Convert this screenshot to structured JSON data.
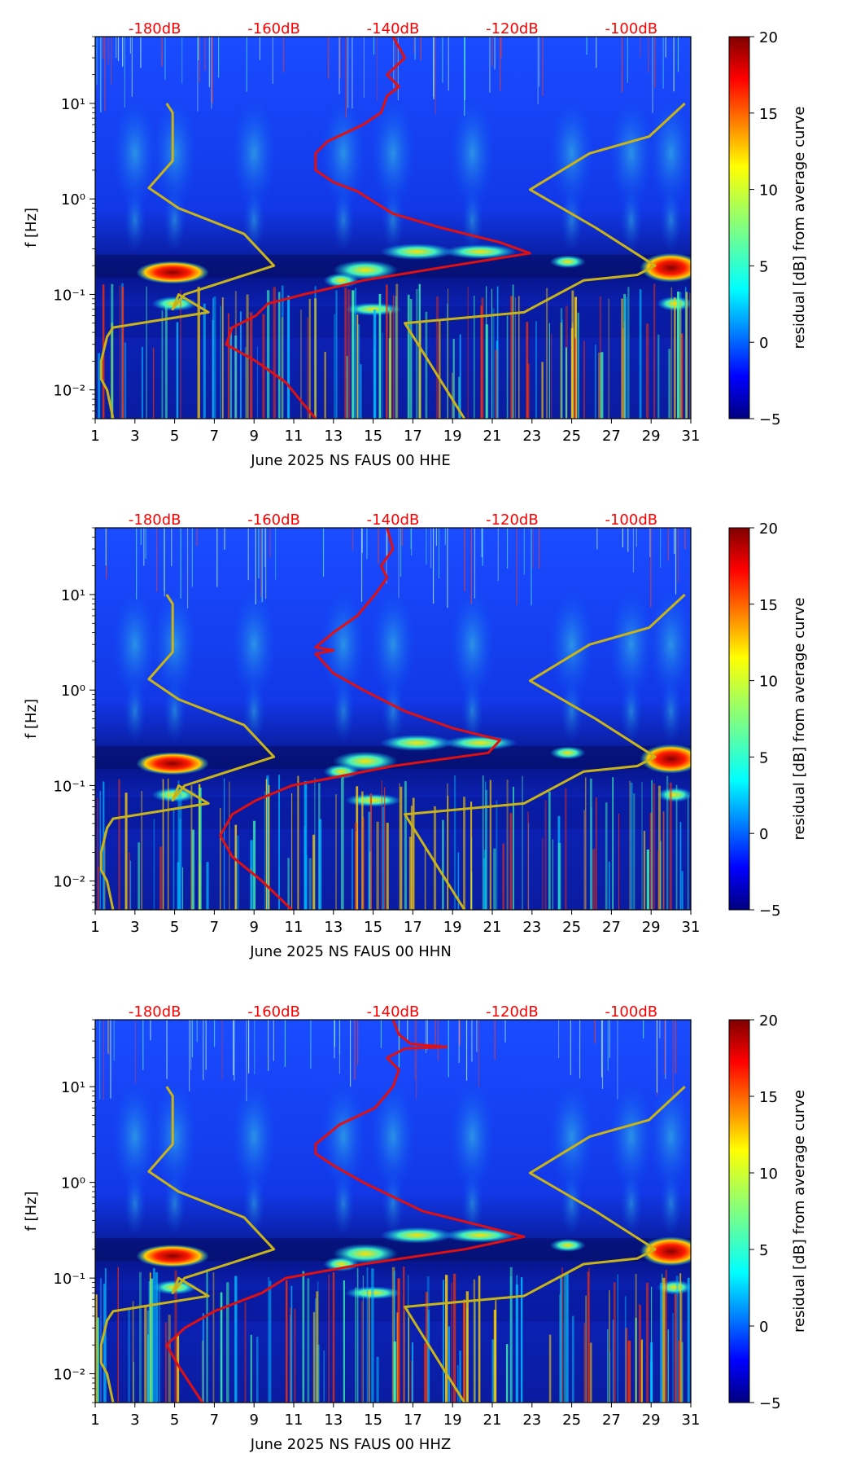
{
  "colors": {
    "model_curve": "#c8b418",
    "average_curve": "#e01010",
    "top_axis_text": "#ff0000",
    "colormap": [
      "#00007f",
      "#0000ff",
      "#0080ff",
      "#00ffff",
      "#80ff80",
      "#ffff00",
      "#ff8000",
      "#ff0000",
      "#7f0000"
    ]
  },
  "chart_data": [
    {
      "type": "heatmap",
      "xlabel": "June 2025 NS FAUS 00 HHE",
      "ylabel": "f [Hz]",
      "x_range": [
        1,
        31
      ],
      "x_ticks": [
        "1",
        "3",
        "5",
        "7",
        "9",
        "11",
        "13",
        "15",
        "17",
        "19",
        "21",
        "23",
        "25",
        "27",
        "29",
        "31"
      ],
      "y_range_hz": [
        0.005,
        50
      ],
      "y_ticks": [
        {
          "label": "10⁻²",
          "value": 0.01
        },
        {
          "label": "10⁻¹",
          "value": 0.1
        },
        {
          "label": "10⁰",
          "value": 1
        },
        {
          "label": "10¹",
          "value": 10
        }
      ],
      "top_axis_ticks": [
        "-180dB",
        "-160dB",
        "-140dB",
        "-120dB",
        "-100dB"
      ],
      "top_axis_range_db": [
        -190,
        -90
      ],
      "colorbar": {
        "label": "residual [dB] from average curve",
        "min": -5,
        "max": 20,
        "ticks": [
          "−5",
          "0",
          "5",
          "10",
          "15",
          "20"
        ]
      },
      "series": [
        {
          "name": "model (NLNM/NHNM)",
          "color": "#c8b418",
          "segments": [
            [
              [
                -178,
                10
              ],
              [
                -177,
                8
              ],
              [
                -177,
                2.5
              ],
              [
                -181,
                1.3
              ],
              [
                -176,
                0.8
              ],
              [
                -165,
                0.43
              ],
              [
                -160,
                0.2
              ],
              [
                -175,
                0.1
              ],
              [
                -177,
                0.07
              ],
              [
                -176,
                0.1
              ],
              [
                -171,
                0.065
              ],
              [
                -187,
                0.045
              ],
              [
                -188,
                0.036
              ],
              [
                -189,
                0.02
              ],
              [
                -189,
                0.013
              ],
              [
                -188,
                0.01
              ],
              [
                -187,
                0.005
              ]
            ],
            [
              [
                -91,
                10
              ],
              [
                -97,
                4.5
              ],
              [
                -107,
                3
              ],
              [
                -117,
                1.25
              ],
              [
                -106,
                0.5
              ],
              [
                -96,
                0.2
              ],
              [
                -99,
                0.16
              ],
              [
                -108,
                0.14
              ],
              [
                -118,
                0.065
              ],
              [
                -138,
                0.05
              ],
              [
                -128,
                0.005
              ]
            ]
          ]
        },
        {
          "name": "average curve",
          "color": "#e01010",
          "points": [
            [
              -140,
              50
            ],
            [
              -138,
              30
            ],
            [
              -141,
              20
            ],
            [
              -139,
              15
            ],
            [
              -141,
              12
            ],
            [
              -142,
              8
            ],
            [
              -145,
              6
            ],
            [
              -151,
              4
            ],
            [
              -153,
              3
            ],
            [
              -153,
              2
            ],
            [
              -150,
              1.5
            ],
            [
              -146,
              1.2
            ],
            [
              -140,
              0.7
            ],
            [
              -132,
              0.5
            ],
            [
              -122,
              0.35
            ],
            [
              -117,
              0.27
            ],
            [
              -130,
              0.2
            ],
            [
              -145,
              0.14
            ],
            [
              -155,
              0.1
            ],
            [
              -161,
              0.08
            ],
            [
              -163,
              0.06
            ],
            [
              -167,
              0.045
            ],
            [
              -168,
              0.03
            ],
            [
              -163,
              0.02
            ],
            [
              -158,
              0.012
            ],
            [
              -153,
              0.005
            ]
          ]
        }
      ]
    },
    {
      "type": "heatmap",
      "xlabel": "June 2025 NS FAUS 00 HHN",
      "ylabel": "f [Hz]",
      "x_range": [
        1,
        31
      ],
      "x_ticks": [
        "1",
        "3",
        "5",
        "7",
        "9",
        "11",
        "13",
        "15",
        "17",
        "19",
        "21",
        "23",
        "25",
        "27",
        "29",
        "31"
      ],
      "y_range_hz": [
        0.005,
        50
      ],
      "y_ticks": [
        {
          "label": "10⁻²",
          "value": 0.01
        },
        {
          "label": "10⁻¹",
          "value": 0.1
        },
        {
          "label": "10⁰",
          "value": 1
        },
        {
          "label": "10¹",
          "value": 10
        }
      ],
      "top_axis_ticks": [
        "-180dB",
        "-160dB",
        "-140dB",
        "-120dB",
        "-100dB"
      ],
      "top_axis_range_db": [
        -190,
        -90
      ],
      "colorbar": {
        "label": "residual [dB] from average curve",
        "min": -5,
        "max": 20,
        "ticks": [
          "−5",
          "0",
          "5",
          "10",
          "15",
          "20"
        ]
      },
      "series": [
        {
          "name": "model (NLNM/NHNM)",
          "color": "#c8b418",
          "segments": [
            [
              [
                -178,
                10
              ],
              [
                -177,
                8
              ],
              [
                -177,
                2.5
              ],
              [
                -181,
                1.3
              ],
              [
                -176,
                0.8
              ],
              [
                -165,
                0.43
              ],
              [
                -160,
                0.2
              ],
              [
                -175,
                0.1
              ],
              [
                -177,
                0.07
              ],
              [
                -176,
                0.1
              ],
              [
                -171,
                0.065
              ],
              [
                -187,
                0.045
              ],
              [
                -188,
                0.036
              ],
              [
                -189,
                0.02
              ],
              [
                -189,
                0.013
              ],
              [
                -188,
                0.01
              ],
              [
                -187,
                0.005
              ]
            ],
            [
              [
                -91,
                10
              ],
              [
                -97,
                4.5
              ],
              [
                -107,
                3
              ],
              [
                -117,
                1.25
              ],
              [
                -106,
                0.5
              ],
              [
                -96,
                0.2
              ],
              [
                -99,
                0.16
              ],
              [
                -108,
                0.14
              ],
              [
                -118,
                0.065
              ],
              [
                -138,
                0.05
              ],
              [
                -128,
                0.005
              ]
            ]
          ]
        },
        {
          "name": "average curve",
          "color": "#e01010",
          "points": [
            [
              -141,
              50
            ],
            [
              -140,
              30
            ],
            [
              -142,
              20
            ],
            [
              -141,
              15
            ],
            [
              -143,
              10
            ],
            [
              -146,
              6
            ],
            [
              -150,
              4
            ],
            [
              -153,
              2.8
            ],
            [
              -150,
              2.6
            ],
            [
              -153,
              2.4
            ],
            [
              -150,
              1.5
            ],
            [
              -145,
              1.0
            ],
            [
              -138,
              0.6
            ],
            [
              -130,
              0.4
            ],
            [
              -122,
              0.3
            ],
            [
              -124,
              0.22
            ],
            [
              -140,
              0.16
            ],
            [
              -157,
              0.1
            ],
            [
              -163,
              0.07
            ],
            [
              -167,
              0.05
            ],
            [
              -169,
              0.03
            ],
            [
              -167,
              0.018
            ],
            [
              -162,
              0.01
            ],
            [
              -157,
              0.005
            ]
          ]
        }
      ]
    },
    {
      "type": "heatmap",
      "xlabel": "June 2025 NS FAUS 00 HHZ",
      "ylabel": "f [Hz]",
      "x_range": [
        1,
        31
      ],
      "x_ticks": [
        "1",
        "3",
        "5",
        "7",
        "9",
        "11",
        "13",
        "15",
        "17",
        "19",
        "21",
        "23",
        "25",
        "27",
        "29",
        "31"
      ],
      "y_range_hz": [
        0.005,
        50
      ],
      "y_ticks": [
        {
          "label": "10⁻²",
          "value": 0.01
        },
        {
          "label": "10⁻¹",
          "value": 0.1
        },
        {
          "label": "10⁰",
          "value": 1
        },
        {
          "label": "10¹",
          "value": 10
        }
      ],
      "top_axis_ticks": [
        "-180dB",
        "-160dB",
        "-140dB",
        "-120dB",
        "-100dB"
      ],
      "top_axis_range_db": [
        -190,
        -90
      ],
      "colorbar": {
        "label": "residual [dB] from average curve",
        "min": -5,
        "max": 20,
        "ticks": [
          "−5",
          "0",
          "5",
          "10",
          "15",
          "20"
        ]
      },
      "series": [
        {
          "name": "model (NLNM/NHNM)",
          "color": "#c8b418",
          "segments": [
            [
              [
                -178,
                10
              ],
              [
                -177,
                8
              ],
              [
                -177,
                2.5
              ],
              [
                -181,
                1.3
              ],
              [
                -176,
                0.8
              ],
              [
                -165,
                0.43
              ],
              [
                -160,
                0.2
              ],
              [
                -175,
                0.1
              ],
              [
                -177,
                0.07
              ],
              [
                -176,
                0.1
              ],
              [
                -171,
                0.065
              ],
              [
                -187,
                0.045
              ],
              [
                -188,
                0.036
              ],
              [
                -189,
                0.02
              ],
              [
                -189,
                0.013
              ],
              [
                -188,
                0.01
              ],
              [
                -187,
                0.005
              ]
            ],
            [
              [
                -91,
                10
              ],
              [
                -97,
                4.5
              ],
              [
                -107,
                3
              ],
              [
                -117,
                1.25
              ],
              [
                -106,
                0.5
              ],
              [
                -96,
                0.2
              ],
              [
                -99,
                0.16
              ],
              [
                -108,
                0.14
              ],
              [
                -118,
                0.065
              ],
              [
                -138,
                0.05
              ],
              [
                -128,
                0.005
              ]
            ]
          ]
        },
        {
          "name": "average curve",
          "color": "#e01010",
          "points": [
            [
              -140,
              50
            ],
            [
              -139,
              35
            ],
            [
              -137,
              28
            ],
            [
              -131,
              26
            ],
            [
              -138,
              25
            ],
            [
              -141,
              20
            ],
            [
              -139,
              15
            ],
            [
              -140,
              10
            ],
            [
              -143,
              6
            ],
            [
              -149,
              4
            ],
            [
              -153,
              2.5
            ],
            [
              -153,
              2
            ],
            [
              -150,
              1.5
            ],
            [
              -145,
              1.0
            ],
            [
              -135,
              0.5
            ],
            [
              -125,
              0.35
            ],
            [
              -118,
              0.27
            ],
            [
              -128,
              0.2
            ],
            [
              -145,
              0.14
            ],
            [
              -158,
              0.1
            ],
            [
              -162,
              0.07
            ],
            [
              -170,
              0.045
            ],
            [
              -175,
              0.03
            ],
            [
              -178,
              0.02
            ],
            [
              -176,
              0.012
            ],
            [
              -172,
              0.005
            ]
          ]
        }
      ]
    }
  ]
}
